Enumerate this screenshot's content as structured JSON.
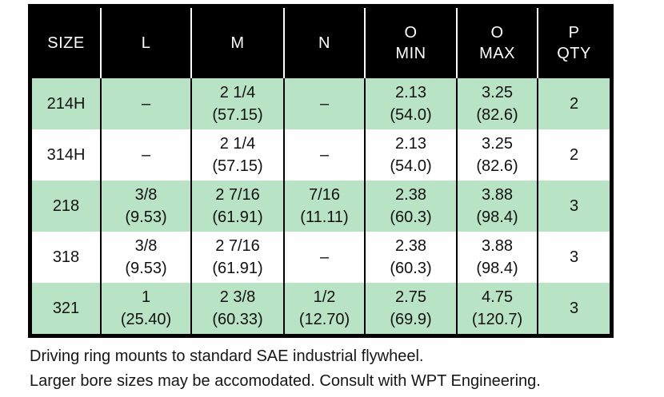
{
  "table": {
    "headers": [
      "SIZE",
      "L",
      "M",
      "N",
      "O\nMIN",
      "O\nMAX",
      "P\nQTY"
    ],
    "rows": [
      [
        "214H",
        "–",
        "2 1/4\n(57.15)",
        "–",
        "2.13\n(54.0)",
        "3.25\n(82.6)",
        "2"
      ],
      [
        "314H",
        "–",
        "2 1/4\n(57.15)",
        "–",
        "2.13\n(54.0)",
        "3.25\n(82.6)",
        "2"
      ],
      [
        "218",
        "3/8\n(9.53)",
        "2 7/16\n(61.91)",
        "7/16\n(11.11)",
        "2.38\n(60.3)",
        "3.88\n(98.4)",
        "3"
      ],
      [
        "318",
        "3/8\n(9.53)",
        "2 7/16\n(61.91)",
        "–",
        "2.38\n(60.3)",
        "3.88\n(98.4)",
        "3"
      ],
      [
        "321",
        "1\n(25.40)",
        "2 3/8\n(60.33)",
        "1/2\n(12.70)",
        "2.75\n(69.9)",
        "4.75\n(120.7)",
        "3"
      ]
    ]
  },
  "notes": {
    "line1": "Driving ring mounts to standard SAE industrial flywheel.",
    "line2": "Larger bore sizes may be accomodated. Consult with WPT Engineering."
  },
  "colors": {
    "header_bg": "#000000",
    "header_text": "#ffffff",
    "row_green": "#b9e3c5",
    "row_white": "#ffffff",
    "border": "#000000"
  }
}
